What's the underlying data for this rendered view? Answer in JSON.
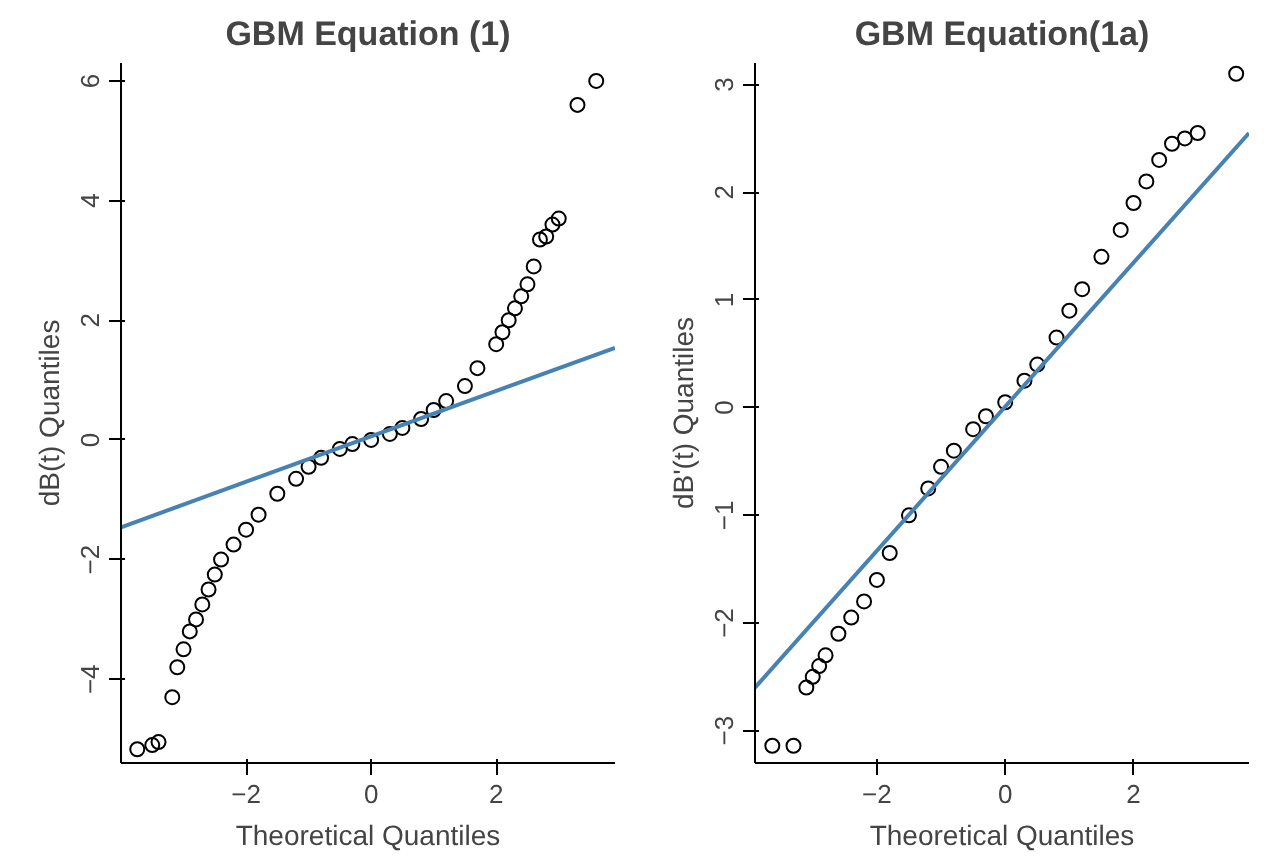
{
  "chart_data": [
    {
      "type": "scatter",
      "title": "GBM Equation (1)",
      "xlabel": "Theoretical Quantiles",
      "ylabel": "dB(t) Quantiles",
      "xlim": [
        -4.0,
        3.9
      ],
      "ylim": [
        -5.4,
        6.3
      ],
      "xticks": [
        -2,
        0,
        2
      ],
      "yticks": [
        -4,
        -2,
        0,
        2,
        4,
        6
      ],
      "grid": false,
      "series": [
        {
          "marker": "circle",
          "color": "#000000",
          "x": [
            -3.74,
            -3.5,
            -3.4,
            -3.18,
            -3.1,
            -3.0,
            -2.9,
            -2.8,
            -2.7,
            -2.6,
            -2.5,
            -2.4,
            -2.2,
            -2.0,
            -1.8,
            -1.5,
            -1.2,
            -1.0,
            -0.8,
            -0.5,
            -0.3,
            0,
            0.3,
            0.5,
            0.8,
            1.0,
            1.2,
            1.5,
            1.7,
            2.0,
            2.1,
            2.2,
            2.3,
            2.4,
            2.5,
            2.6,
            2.7,
            2.8,
            2.9,
            3.0,
            3.3,
            3.6
          ],
          "values": [
            -5.17,
            -5.1,
            -5.05,
            -4.3,
            -3.8,
            -3.5,
            -3.2,
            -3.0,
            -2.75,
            -2.5,
            -2.25,
            -2.0,
            -1.75,
            -1.5,
            -1.25,
            -0.9,
            -0.65,
            -0.45,
            -0.3,
            -0.15,
            -0.07,
            0,
            0.1,
            0.2,
            0.35,
            0.5,
            0.65,
            0.9,
            1.2,
            1.6,
            1.8,
            2.0,
            2.2,
            2.4,
            2.6,
            2.9,
            3.35,
            3.4,
            3.6,
            3.7,
            5.6,
            6.0
          ]
        },
        {
          "type": "line",
          "color": "#4682b4",
          "x": [
            -4.0,
            3.9
          ],
          "values": [
            -1.46,
            1.54
          ]
        }
      ]
    },
    {
      "type": "scatter",
      "title": "GBM Equation(1a)",
      "xlabel": "Theoretical Quantiles",
      "ylabel": "dB'(t) Quantiles",
      "xlim": [
        -3.9,
        3.8
      ],
      "ylim": [
        -3.3,
        3.2
      ],
      "xticks": [
        -2,
        0,
        2
      ],
      "yticks": [
        -3,
        -2,
        -1,
        0,
        1,
        2,
        3
      ],
      "grid": false,
      "series": [
        {
          "marker": "circle",
          "color": "#000000",
          "x": [
            -3.63,
            -3.3,
            -3.1,
            -3.0,
            -2.9,
            -2.8,
            -2.6,
            -2.4,
            -2.2,
            -2.0,
            -1.8,
            -1.5,
            -1.2,
            -1.0,
            -0.8,
            -0.5,
            -0.3,
            0,
            0.3,
            0.5,
            0.8,
            1.0,
            1.2,
            1.5,
            1.8,
            2.0,
            2.2,
            2.4,
            2.6,
            2.8,
            3.0,
            3.6
          ],
          "values": [
            -3.14,
            -3.14,
            -2.6,
            -2.5,
            -2.4,
            -2.3,
            -2.1,
            -1.95,
            -1.8,
            -1.6,
            -1.35,
            -1.0,
            -0.75,
            -0.55,
            -0.4,
            -0.2,
            -0.08,
            0.05,
            0.25,
            0.4,
            0.65,
            0.9,
            1.1,
            1.4,
            1.65,
            1.9,
            2.1,
            2.3,
            2.45,
            2.5,
            2.55,
            3.1
          ]
        },
        {
          "type": "line",
          "color": "#4682b4",
          "x": [
            -3.9,
            3.8
          ],
          "values": [
            -2.6,
            2.55
          ]
        }
      ]
    }
  ]
}
